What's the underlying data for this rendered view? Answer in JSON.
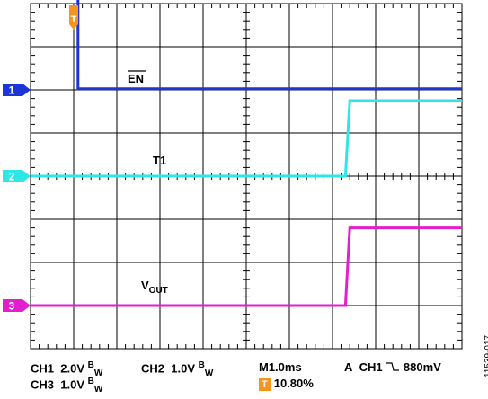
{
  "chart_data": {
    "type": "line",
    "time_per_div_ms": 1.0,
    "divisions": {
      "x": 10,
      "y": 8
    },
    "trigger_position_div": 1.0,
    "grid": true,
    "series": [
      {
        "name": "EN",
        "channel": 1,
        "color": "#1c35d6",
        "volts_per_div": 2.0,
        "ground_div": 6.0,
        "points": [
          [
            0,
            4.8
          ],
          [
            1.1,
            4.8
          ],
          [
            1.1,
            0.05
          ],
          [
            10,
            0.05
          ]
        ]
      },
      {
        "name": "T1",
        "channel": 2,
        "color": "#2ee6e6",
        "volts_per_div": 1.0,
        "ground_div": 4.0,
        "points": [
          [
            0,
            0.0
          ],
          [
            7.3,
            0.0
          ],
          [
            7.4,
            1.75
          ],
          [
            10,
            1.75
          ]
        ]
      },
      {
        "name": "VOUT",
        "channel": 3,
        "color": "#e21fd0",
        "volts_per_div": 1.0,
        "ground_div": 1.0,
        "points": [
          [
            0,
            0.0
          ],
          [
            7.3,
            0.0
          ],
          [
            7.4,
            1.8
          ],
          [
            10,
            1.8
          ]
        ]
      }
    ]
  },
  "labels": {
    "en": "EN",
    "t1": "T1",
    "vout_main": "V",
    "vout_sub": "OUT",
    "trigger_marker": "T"
  },
  "markers": {
    "ch1": "1",
    "ch2": "2",
    "ch3": "3"
  },
  "footer": {
    "ch1": "CH1",
    "ch1_scale": "2.0V",
    "bw": "B",
    "bw_sub": "W",
    "ch2": "CH2",
    "ch2_scale": "1.0V",
    "ch3": "CH3",
    "ch3_scale": "1.0V",
    "timebase": "M1.0ms",
    "trig_mode": "A",
    "trig_src": "CH1",
    "trig_level": "880mV",
    "trig_badge": "T",
    "trig_pos": "10.80%"
  },
  "figure_id": "11539-017",
  "colors": {
    "trigger": "#f7941d",
    "ch1": "#1c35d6",
    "ch2": "#2ee6e6",
    "ch3": "#e21fd0"
  }
}
